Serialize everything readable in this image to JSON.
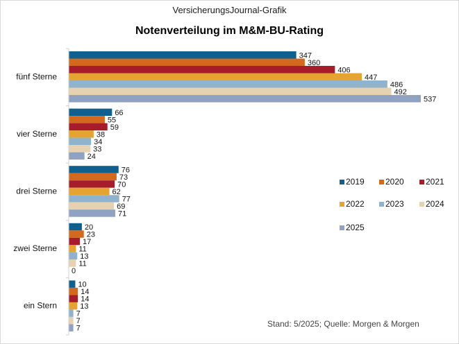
{
  "header": {
    "source_title": "VersicherungsJournal-Grafik",
    "chart_title": "Notenverteilung im M&M-BU-Rating"
  },
  "footnote": "Stand: 5/2025; Quelle: Morgen & Morgen",
  "colors": {
    "2019": "#0f5f8f",
    "2020": "#d2691e",
    "2021": "#a61c2a",
    "2022": "#e5a331",
    "2023": "#8fb3cd",
    "2024": "#e6d2b0",
    "2025": "#8fa2c2"
  },
  "chart_data": {
    "type": "bar",
    "orientation": "horizontal",
    "title": "Notenverteilung im M&M-BU-Rating",
    "categories": [
      "fünf Sterne",
      "vier Sterne",
      "drei Sterne",
      "zwei Sterne",
      "ein Stern"
    ],
    "series": [
      {
        "name": "2019",
        "values": [
          347,
          66,
          76,
          20,
          10
        ]
      },
      {
        "name": "2020",
        "values": [
          360,
          55,
          73,
          23,
          14
        ]
      },
      {
        "name": "2021",
        "values": [
          406,
          59,
          70,
          17,
          14
        ]
      },
      {
        "name": "2022",
        "values": [
          447,
          38,
          62,
          11,
          13
        ]
      },
      {
        "name": "2023",
        "values": [
          486,
          34,
          77,
          13,
          7
        ]
      },
      {
        "name": "2024",
        "values": [
          492,
          33,
          69,
          11,
          7
        ]
      },
      {
        "name": "2025",
        "values": [
          537,
          24,
          71,
          0,
          7
        ]
      }
    ],
    "xlim": [
      0,
      537
    ],
    "grid": false,
    "data_labels": true,
    "legend_position": "right"
  }
}
